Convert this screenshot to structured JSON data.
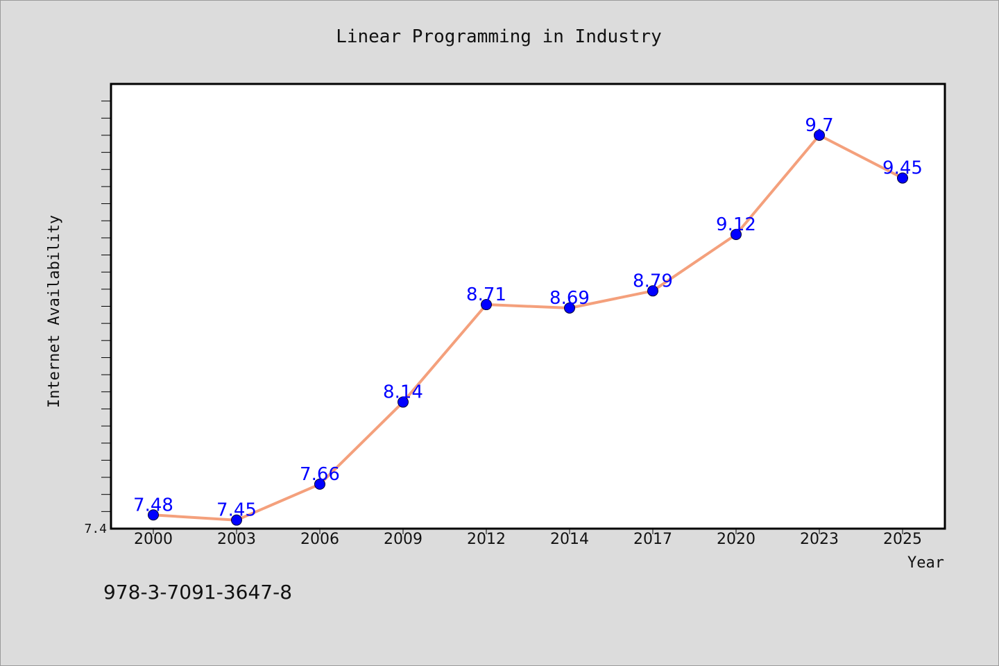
{
  "chart_data": {
    "type": "line",
    "title": "Linear Programming in Industry",
    "xlabel": "Year",
    "ylabel": "Internet Availability",
    "categories": [
      "2000",
      "2003",
      "2006",
      "2009",
      "2012",
      "2014",
      "2017",
      "2020",
      "2023",
      "2025"
    ],
    "series": [
      {
        "values": [
          7.48,
          7.45,
          7.66,
          8.14,
          8.71,
          8.69,
          8.79,
          9.12,
          9.7,
          9.45
        ],
        "line_color": "#f4a07c",
        "marker_color": "#0000ff"
      }
    ],
    "data_labels": [
      "7.48",
      "7.45",
      "7.66",
      "8.14",
      "8.71",
      "8.69",
      "8.79",
      "9.12",
      "9.7",
      "9.45"
    ],
    "ylim": [
      7.4,
      10.0
    ],
    "yticks_labeled": [
      {
        "value": 7.4,
        "label": "7.4"
      }
    ],
    "minor_tick_step": 0.1,
    "grid": false,
    "legend": "none"
  },
  "footer_text": "978-3-7091-3647-8",
  "colors": {
    "background": "#dcdcdc",
    "plot_background": "#ffffff",
    "axis": "#000000",
    "line": "#f4a07c",
    "marker": "#0000ff",
    "data_label": "#0000ff"
  }
}
